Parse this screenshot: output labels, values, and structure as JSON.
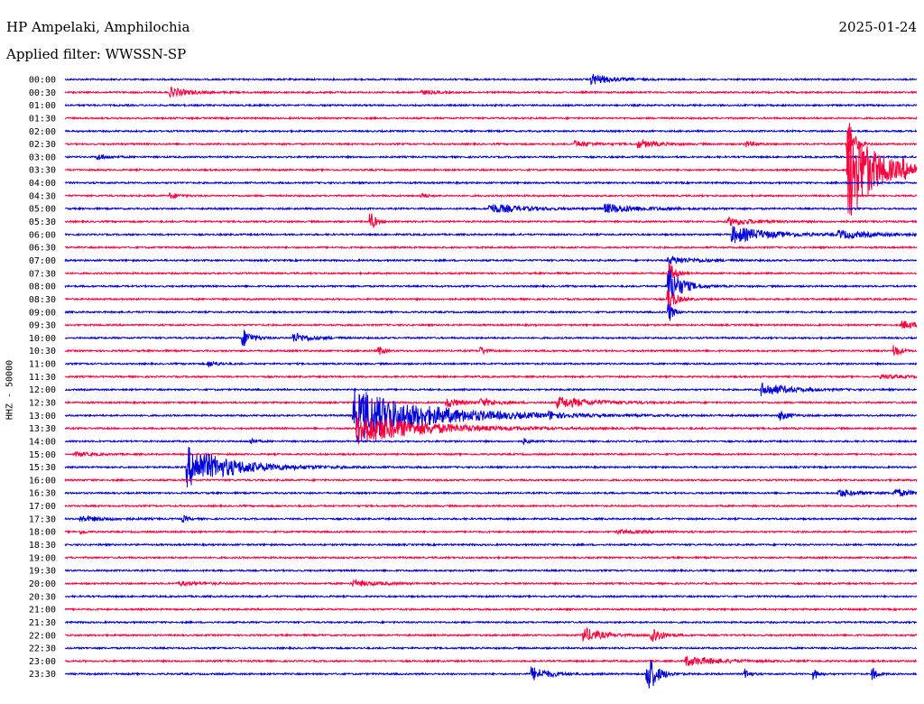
{
  "header": {
    "station": "HP Ampelaki, Amphilochia",
    "date": "2025-01-24",
    "filter": "Applied filter: WWSSN-SP"
  },
  "chart_data": {
    "type": "line",
    "title": "HP Ampelaki, Amphilochia",
    "subtitle": "Applied filter: WWSSN-SP",
    "ylabel": "HHZ - 50000",
    "colors": [
      "#0000d8",
      "#ff003c"
    ],
    "rows": [
      {
        "label": "00:00",
        "events": [
          {
            "x": 0.62,
            "amp": 6,
            "dur": 0.02
          }
        ]
      },
      {
        "label": "00:30",
        "events": [
          {
            "x": 0.125,
            "amp": 5,
            "dur": 0.02
          },
          {
            "x": 0.42,
            "amp": 2,
            "dur": 0.015
          }
        ]
      },
      {
        "label": "01:00",
        "events": []
      },
      {
        "label": "01:30",
        "events": []
      },
      {
        "label": "02:00",
        "events": []
      },
      {
        "label": "02:30",
        "events": [
          {
            "x": 0.6,
            "amp": 3,
            "dur": 0.02
          },
          {
            "x": 0.675,
            "amp": 4,
            "dur": 0.02
          },
          {
            "x": 0.8,
            "amp": 3,
            "dur": 0.01
          },
          {
            "x": 0.92,
            "amp": 30,
            "dur": 0.006
          }
        ]
      },
      {
        "label": "03:00",
        "events": [
          {
            "x": 0.04,
            "amp": 3,
            "dur": 0.01
          }
        ]
      },
      {
        "label": "03:30",
        "events": [
          {
            "x": 0.92,
            "amp": 60,
            "dur": 0.03
          },
          {
            "x": 0.985,
            "amp": 5,
            "dur": 0.015
          }
        ]
      },
      {
        "label": "04:00",
        "events": []
      },
      {
        "label": "04:30",
        "events": [
          {
            "x": 0.125,
            "amp": 3,
            "dur": 0.01
          },
          {
            "x": 0.42,
            "amp": 3,
            "dur": 0.005
          }
        ]
      },
      {
        "label": "05:00",
        "events": [
          {
            "x": 0.5,
            "amp": 5,
            "dur": 0.04
          },
          {
            "x": 0.635,
            "amp": 5,
            "dur": 0.04
          }
        ]
      },
      {
        "label": "05:30",
        "events": [
          {
            "x": 0.36,
            "amp": 10,
            "dur": 0.005
          },
          {
            "x": 0.78,
            "amp": 4,
            "dur": 0.03
          }
        ]
      },
      {
        "label": "06:00",
        "events": [
          {
            "x": 0.785,
            "amp": 9,
            "dur": 0.04
          },
          {
            "x": 0.91,
            "amp": 4,
            "dur": 0.04
          }
        ]
      },
      {
        "label": "06:30",
        "events": []
      },
      {
        "label": "07:00",
        "events": [
          {
            "x": 0.71,
            "amp": 4,
            "dur": 0.03
          }
        ]
      },
      {
        "label": "07:30",
        "events": [
          {
            "x": 0.71,
            "amp": 12,
            "dur": 0.006
          }
        ]
      },
      {
        "label": "08:00",
        "events": [
          {
            "x": 0.71,
            "amp": 20,
            "dur": 0.015
          }
        ]
      },
      {
        "label": "08:30",
        "events": [
          {
            "x": 0.71,
            "amp": 12,
            "dur": 0.008
          }
        ]
      },
      {
        "label": "09:00",
        "events": [
          {
            "x": 0.71,
            "amp": 10,
            "dur": 0.005
          }
        ]
      },
      {
        "label": "09:30",
        "events": [
          {
            "x": 0.985,
            "amp": 4,
            "dur": 0.02
          }
        ]
      },
      {
        "label": "10:00",
        "events": [
          {
            "x": 0.21,
            "amp": 9,
            "dur": 0.01
          },
          {
            "x": 0.27,
            "amp": 5,
            "dur": 0.02
          }
        ]
      },
      {
        "label": "10:30",
        "events": [
          {
            "x": 0.37,
            "amp": 4,
            "dur": 0.005
          },
          {
            "x": 0.49,
            "amp": 4,
            "dur": 0.005
          },
          {
            "x": 0.975,
            "amp": 7,
            "dur": 0.006
          }
        ]
      },
      {
        "label": "11:00",
        "events": [
          {
            "x": 0.17,
            "amp": 3,
            "dur": 0.01
          }
        ]
      },
      {
        "label": "11:30",
        "events": [
          {
            "x": 0.96,
            "amp": 2,
            "dur": 0.03
          }
        ]
      },
      {
        "label": "12:00",
        "events": [
          {
            "x": 0.82,
            "amp": 7,
            "dur": 0.03
          }
        ]
      },
      {
        "label": "12:30",
        "events": [
          {
            "x": 0.45,
            "amp": 5,
            "dur": 0.015
          },
          {
            "x": 0.49,
            "amp": 4,
            "dur": 0.02
          },
          {
            "x": 0.58,
            "amp": 6,
            "dur": 0.04
          }
        ]
      },
      {
        "label": "13:00",
        "events": [
          {
            "x": 0.34,
            "amp": 30,
            "dur": 0.08
          },
          {
            "x": 0.57,
            "amp": 3,
            "dur": 0.01
          },
          {
            "x": 0.84,
            "amp": 5,
            "dur": 0.01
          }
        ]
      },
      {
        "label": "13:30",
        "events": [
          {
            "x": 0.345,
            "amp": 18,
            "dur": 0.07
          }
        ]
      },
      {
        "label": "14:00",
        "events": [
          {
            "x": 0.22,
            "amp": 3,
            "dur": 0.005
          },
          {
            "x": 0.54,
            "amp": 3,
            "dur": 0.005
          }
        ]
      },
      {
        "label": "15:00",
        "events": [
          {
            "x": 0.015,
            "amp": 2,
            "dur": 0.02
          }
        ]
      },
      {
        "label": "15:30",
        "events": [
          {
            "x": 0.145,
            "amp": 22,
            "dur": 0.05
          }
        ]
      },
      {
        "label": "16:00",
        "events": []
      },
      {
        "label": "16:30",
        "events": [
          {
            "x": 0.91,
            "amp": 4,
            "dur": 0.02
          },
          {
            "x": 0.975,
            "amp": 4,
            "dur": 0.02
          }
        ]
      },
      {
        "label": "17:00",
        "events": []
      },
      {
        "label": "17:30",
        "events": [
          {
            "x": 0.02,
            "amp": 3,
            "dur": 0.03
          },
          {
            "x": 0.14,
            "amp": 3,
            "dur": 0.005
          }
        ]
      },
      {
        "label": "18:00",
        "events": [
          {
            "x": 0.02,
            "amp": 2,
            "dur": 0.005
          },
          {
            "x": 0.65,
            "amp": 2,
            "dur": 0.03
          }
        ]
      },
      {
        "label": "18:30",
        "events": []
      },
      {
        "label": "19:00",
        "events": []
      },
      {
        "label": "19:30",
        "events": []
      },
      {
        "label": "20:00",
        "events": [
          {
            "x": 0.135,
            "amp": 2,
            "dur": 0.03
          },
          {
            "x": 0.34,
            "amp": 3,
            "dur": 0.03
          }
        ]
      },
      {
        "label": "20:30",
        "events": []
      },
      {
        "label": "21:00",
        "events": []
      },
      {
        "label": "21:30",
        "events": []
      },
      {
        "label": "22:00",
        "events": [
          {
            "x": 0.61,
            "amp": 8,
            "dur": 0.02
          },
          {
            "x": 0.69,
            "amp": 10,
            "dur": 0.01
          }
        ]
      },
      {
        "label": "22:30",
        "events": []
      },
      {
        "label": "23:00",
        "events": [
          {
            "x": 0.73,
            "amp": 5,
            "dur": 0.04
          }
        ]
      },
      {
        "label": "23:30",
        "events": [
          {
            "x": 0.55,
            "amp": 7,
            "dur": 0.02
          },
          {
            "x": 0.685,
            "amp": 22,
            "dur": 0.01
          },
          {
            "x": 0.8,
            "amp": 5,
            "dur": 0.005
          },
          {
            "x": 0.88,
            "amp": 6,
            "dur": 0.005
          },
          {
            "x": 0.95,
            "amp": 6,
            "dur": 0.005
          }
        ]
      }
    ]
  }
}
